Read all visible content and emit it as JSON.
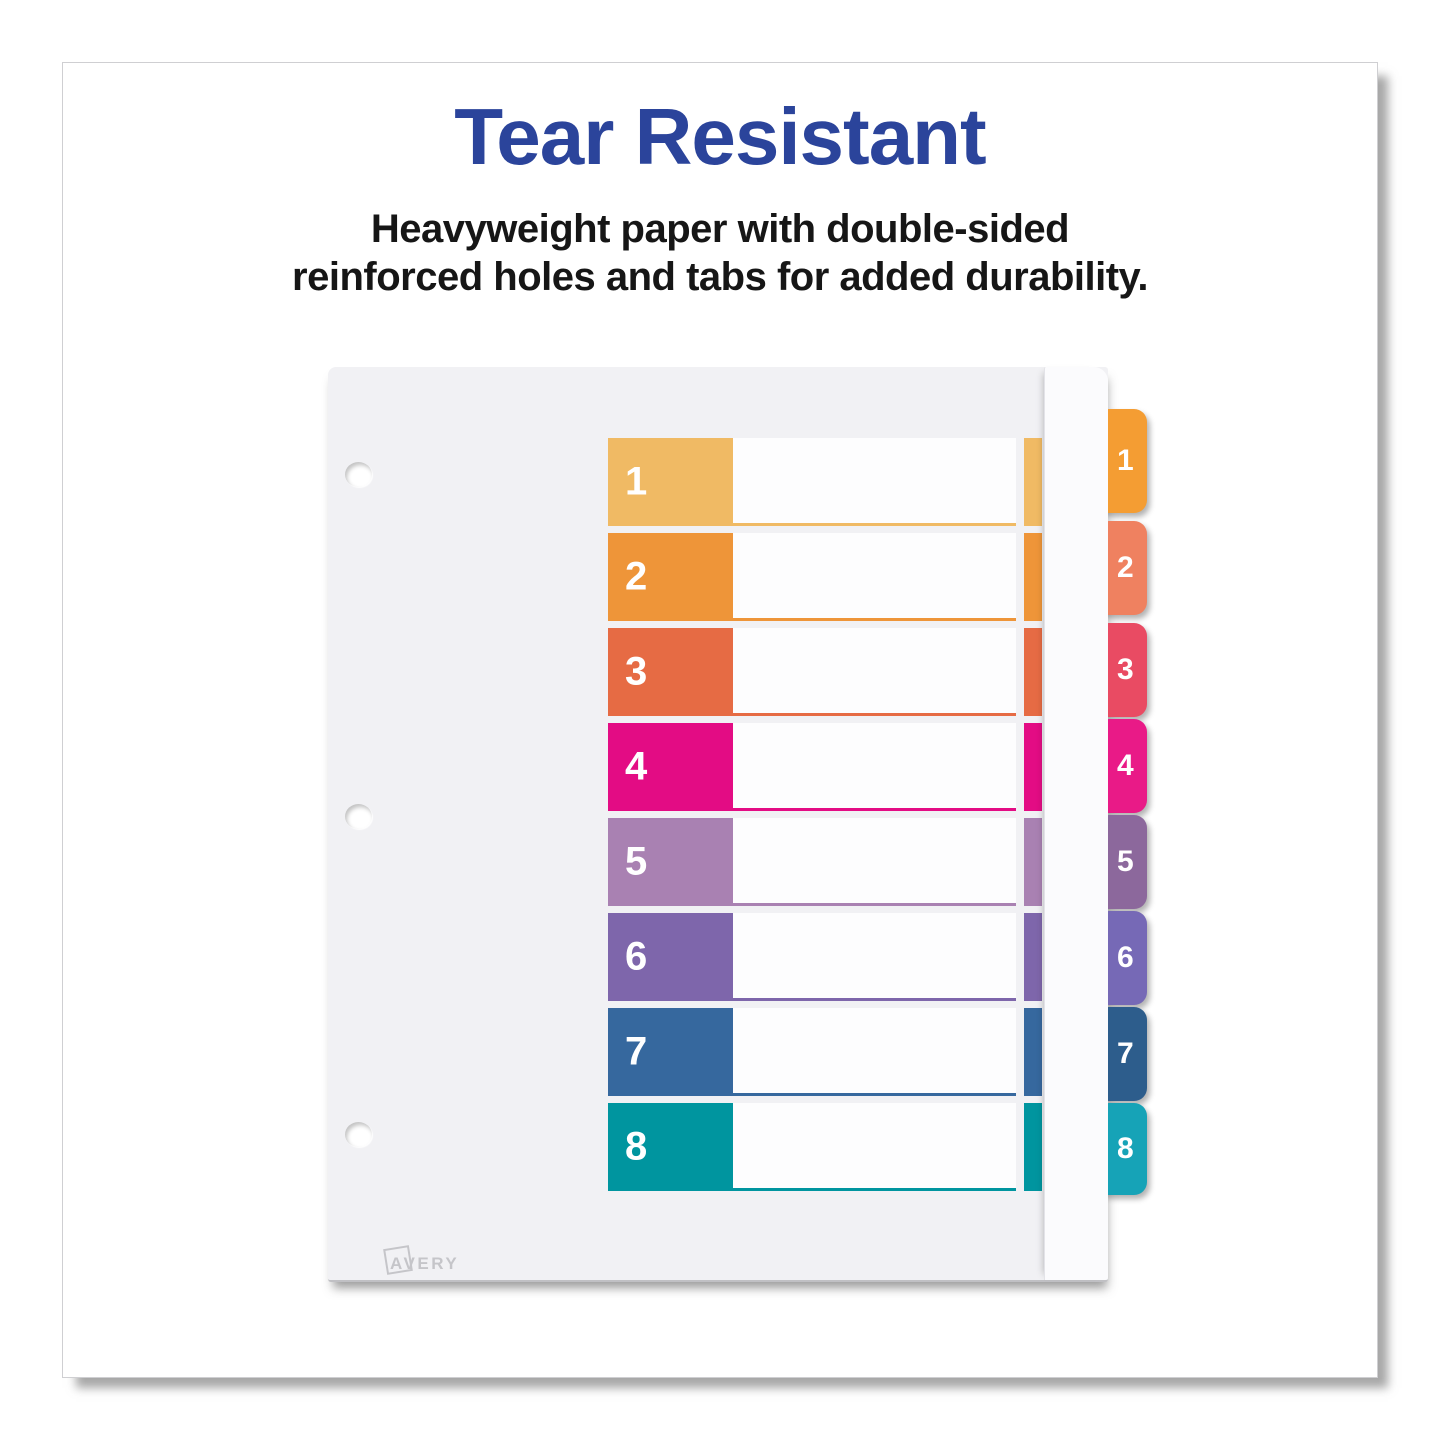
{
  "header": {
    "title": "Tear Resistant",
    "subtitle_line1": "Heavyweight paper with double-sided",
    "subtitle_line2": "reinforced holes and tabs for added durability."
  },
  "colors": {
    "accent_blue": "#2b449b",
    "subtitle_text": "#161616",
    "sheet_background": "#f1f1f4",
    "binder_strip": "#fbfbfd",
    "row_area_white": "#fdfdfe",
    "logo_gray": "#c5c5c9"
  },
  "divider": {
    "brand": "AVERY",
    "hole_count": 3,
    "rows": [
      {
        "label": "1",
        "row_color": "#f0ba64",
        "tab_color": "#f49d33"
      },
      {
        "label": "2",
        "row_color": "#ee9539",
        "tab_color": "#ef8160"
      },
      {
        "label": "3",
        "row_color": "#e66b44",
        "tab_color": "#e94b63"
      },
      {
        "label": "4",
        "row_color": "#e30c84",
        "tab_color": "#e91a87"
      },
      {
        "label": "5",
        "row_color": "#a981b2",
        "tab_color": "#8c689c"
      },
      {
        "label": "6",
        "row_color": "#7e66ab",
        "tab_color": "#7669b6"
      },
      {
        "label": "7",
        "row_color": "#36689e",
        "tab_color": "#2d5d8c"
      },
      {
        "label": "8",
        "row_color": "#00959f",
        "tab_color": "#16a3b7"
      }
    ]
  }
}
